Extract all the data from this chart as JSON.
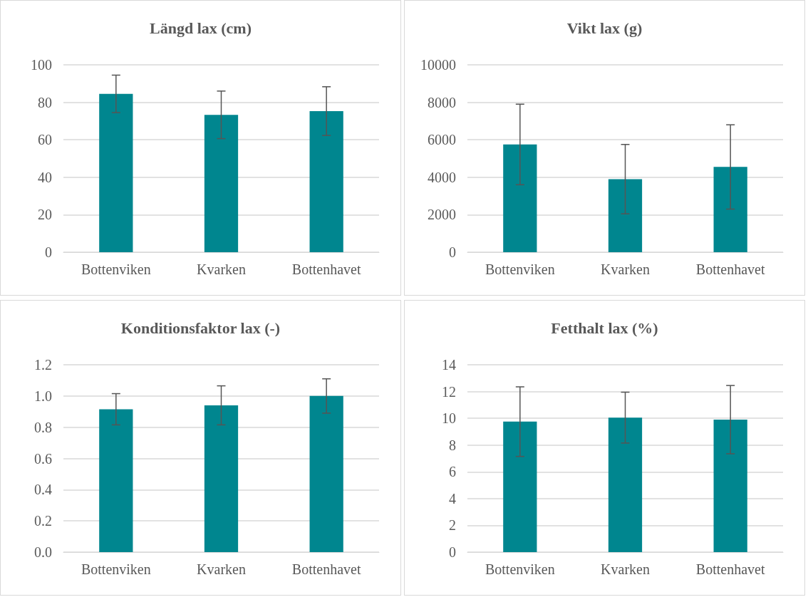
{
  "chart_data": [
    {
      "type": "bar",
      "title": "Längd lax (cm)",
      "categories": [
        "Bottenviken",
        "Kvarken",
        "Bottenhavet"
      ],
      "values": [
        84.5,
        73.3,
        75.3
      ],
      "errors": [
        10,
        12.7,
        13
      ],
      "color": "#00868f",
      "ylim": [
        0,
        100
      ],
      "yticks": [
        0,
        20,
        40,
        60,
        80,
        100
      ],
      "grid": "y"
    },
    {
      "type": "bar",
      "title": "Vikt lax (g)",
      "categories": [
        "Bottenviken",
        "Kvarken",
        "Bottenhavet"
      ],
      "values": [
        5750,
        3900,
        4550
      ],
      "errors": [
        2150,
        1850,
        2250
      ],
      "color": "#00868f",
      "ylim": [
        0,
        10000
      ],
      "yticks": [
        0,
        2000,
        4000,
        6000,
        8000,
        10000
      ],
      "grid": "y"
    },
    {
      "type": "bar",
      "title": "Konditionsfaktor lax (-)",
      "categories": [
        "Bottenviken",
        "Kvarken",
        "Bottenhavet"
      ],
      "values": [
        0.915,
        0.94,
        1.0
      ],
      "errors": [
        0.1,
        0.125,
        0.11
      ],
      "color": "#00868f",
      "ylim": [
        0,
        1.2
      ],
      "yticks": [
        {
          "value": 0,
          "label": "0.0"
        },
        0.2,
        0.4,
        0.6,
        0.8,
        {
          "value": 1,
          "label": "1.0"
        },
        1.2
      ],
      "grid": "y"
    },
    {
      "type": "bar",
      "title": "Fetthalt lax (%)",
      "categories": [
        "Bottenviken",
        "Kvarken",
        "Bottenhavet"
      ],
      "values": [
        9.75,
        10.05,
        9.9
      ],
      "errors": [
        2.6,
        1.9,
        2.55
      ],
      "color": "#00868f",
      "ylim": [
        0,
        14
      ],
      "yticks": [
        0,
        2,
        4,
        6,
        8,
        10,
        12,
        14
      ],
      "grid": "y"
    }
  ]
}
